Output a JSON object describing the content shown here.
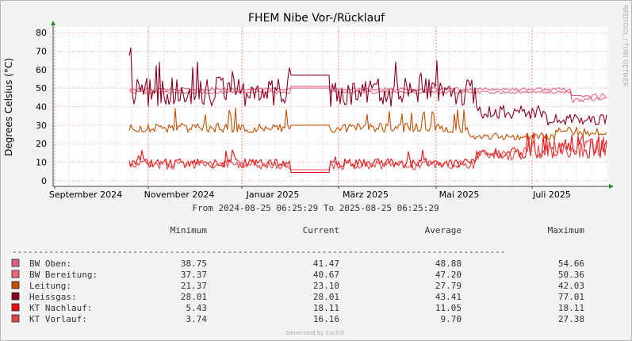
{
  "chart_data": {
    "type": "line",
    "title": "FHEM Nibe Vor-/Rücklauf",
    "ylabel": "Degrees Celsius (°C)",
    "xlabel": "",
    "ylim": [
      -3,
      83
    ],
    "y_ticks": [
      "0",
      "10",
      "20",
      "30",
      "40",
      "50",
      "60",
      "70",
      "80"
    ],
    "x_ticks": [
      "September 2024",
      "November 2024",
      "Januar 2025",
      "März 2025",
      "Mai 2025",
      "Juli 2025"
    ],
    "x_range": [
      "2024-08-25 06:25:29",
      "2025-08-25 06:25:29"
    ],
    "grid": true,
    "series": [
      {
        "name": "BW Oben",
        "color": "#e06080",
        "stats": {
          "minimum": "38.75",
          "current": "41.47",
          "average": "48.88",
          "maximum": "54.66"
        }
      },
      {
        "name": "BW Bereitung",
        "color": "#e86a7a",
        "stats": {
          "minimum": "37.37",
          "current": "40.67",
          "average": "47.20",
          "maximum": "50.36"
        }
      },
      {
        "name": "Leitung",
        "color": "#c05000",
        "stats": {
          "minimum": "21.37",
          "current": "23.10",
          "average": "27.79",
          "maximum": "42.03"
        }
      },
      {
        "name": "Heissgas",
        "color": "#8a0020",
        "stats": {
          "minimum": "28.01",
          "current": "28.01",
          "average": "43.41",
          "maximum": "77.01"
        }
      },
      {
        "name": "KT Nachlauf",
        "color": "#e81010",
        "stats": {
          "minimum": "5.43",
          "current": "18.11",
          "average": "11.05",
          "maximum": "18.11"
        }
      },
      {
        "name": "KT Vorlauf",
        "color": "#e04848",
        "stats": {
          "minimum": "3.74",
          "current": "16.16",
          "average": "9.70",
          "maximum": "27.38"
        }
      }
    ]
  },
  "side_label": "RRDTOOL / TOBI OETIKER",
  "date_range_text": "From 2024-08-25 06:25:29 To 2025-08-25 06:25:29",
  "legend_headers": {
    "minimum": "Minimum",
    "current": "Current",
    "average": "Average",
    "maximum": "Maximum"
  },
  "legend_labels": [
    "BW Oben:",
    "BW Bereitung:",
    "Leitung:",
    "Heissgas:",
    "KT Nachlauf:",
    "KT Vorlauf:"
  ],
  "divider": "----------------------------------------------------------------------------------------------",
  "footer": "Generated by Cacti®"
}
